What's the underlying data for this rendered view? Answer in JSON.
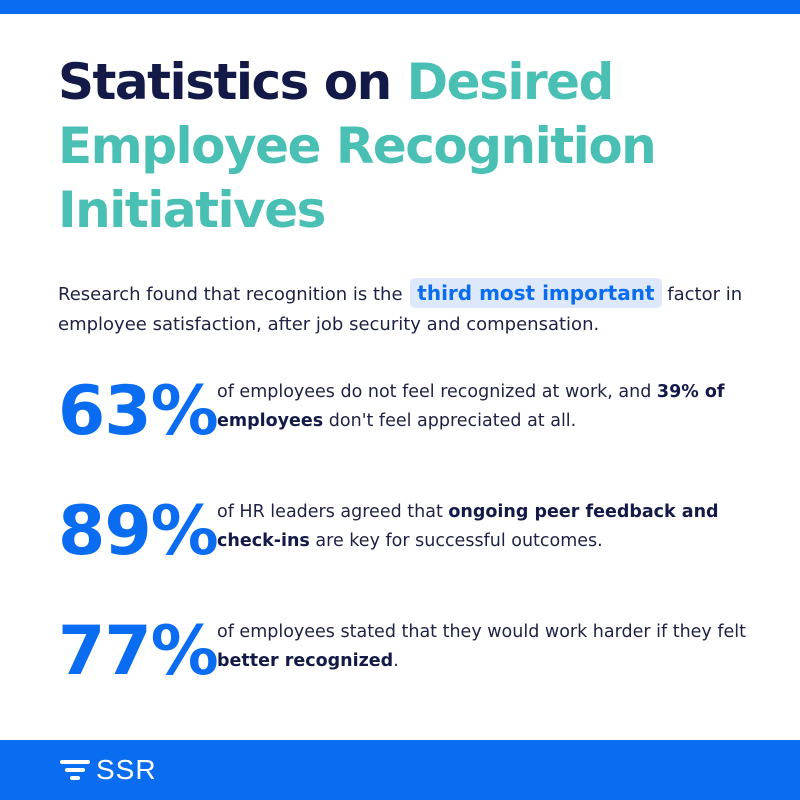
{
  "title": {
    "part1": "Statistics on ",
    "part2": "Desired Employee Recognition Initiatives"
  },
  "intro": {
    "before": "Research found that recognition is the ",
    "highlight": "third most important",
    "after": " factor in employee satisfaction, after job security and compensation."
  },
  "stats": [
    {
      "number": "63%",
      "t1": "of employees do not feel recognized at work, and ",
      "b1": "39% of employees",
      "t2": " don't feel appreciated at all."
    },
    {
      "number": "89%",
      "t1": "of HR leaders agreed that ",
      "b1": "ongoing peer feedback and check-ins",
      "t2": " are key for successful outcomes."
    },
    {
      "number": "77%",
      "t1": "of employees stated that they would work harder if they felt ",
      "b1": "better recognized",
      "t2": "."
    }
  ],
  "footer": {
    "logo_text": "SSR",
    "logo_icon": "ssr-logo-icon"
  },
  "colors": {
    "brand_blue": "#0a6cf0",
    "teal": "#4abfb4",
    "navy": "#141a47",
    "highlight_bg": "#dde9fb"
  }
}
